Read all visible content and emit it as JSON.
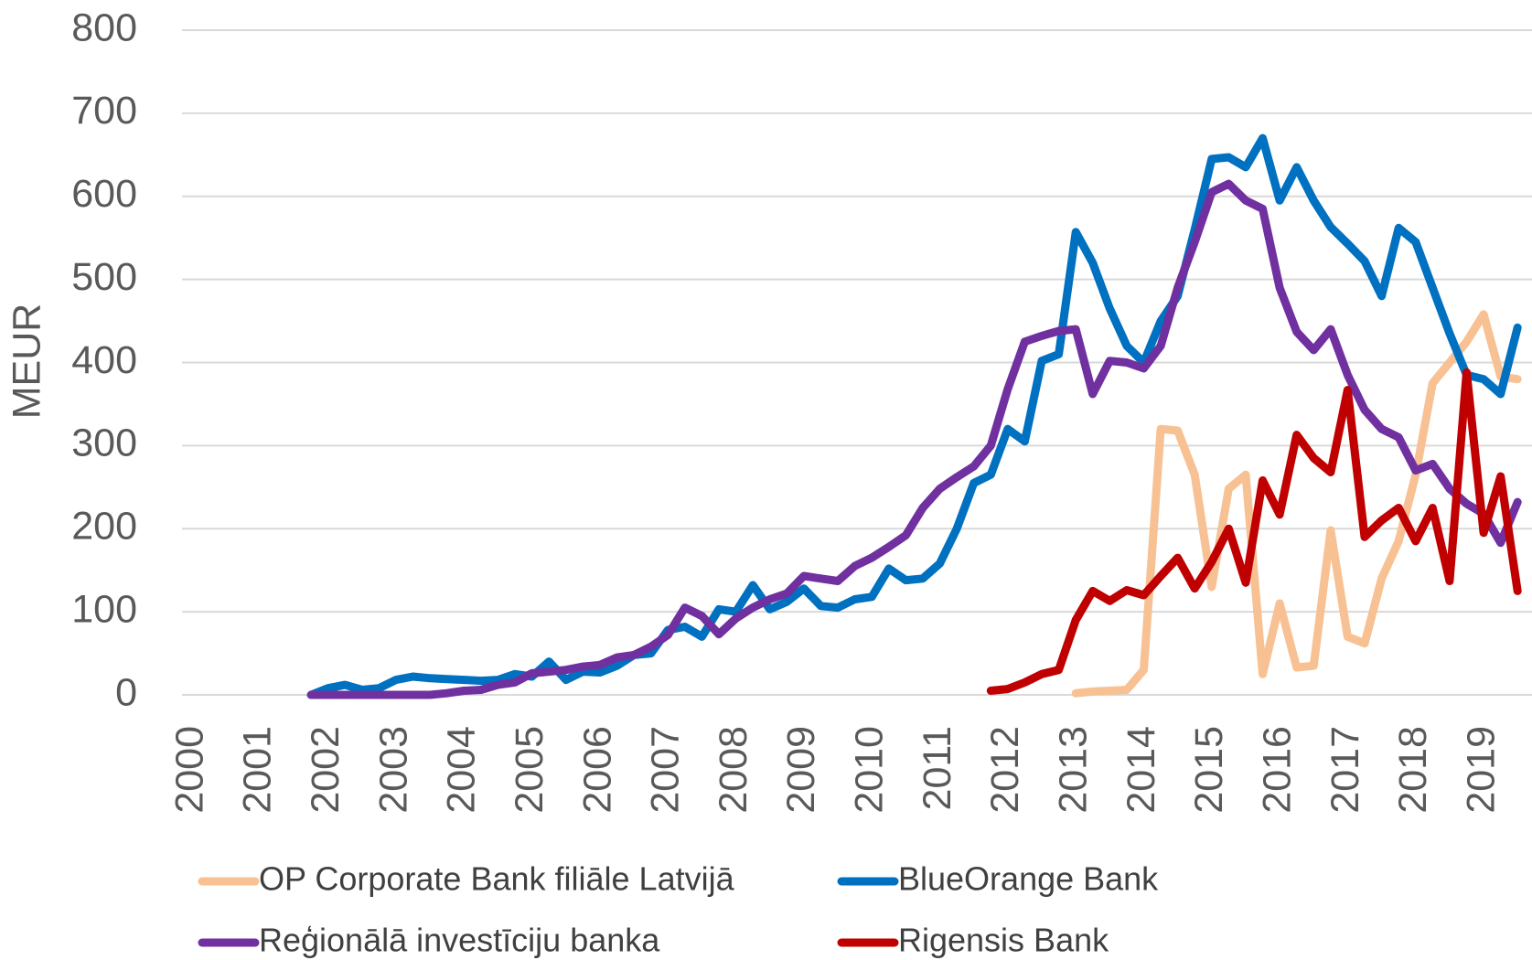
{
  "chart_data": {
    "type": "line",
    "y_label": "MEUR",
    "categories": [
      "2000",
      null,
      null,
      null,
      "2001",
      null,
      null,
      null,
      "2002",
      null,
      null,
      null,
      "2003",
      null,
      null,
      null,
      "2004",
      null,
      null,
      null,
      "2005",
      null,
      null,
      null,
      "2006",
      null,
      null,
      null,
      "2007",
      null,
      null,
      null,
      "2008",
      null,
      null,
      null,
      "2009",
      null,
      null,
      null,
      "2010",
      null,
      null,
      null,
      "2011",
      null,
      null,
      null,
      "2012",
      null,
      null,
      null,
      "2013",
      null,
      null,
      null,
      "2014",
      null,
      null,
      null,
      "2015",
      null,
      null,
      null,
      "2016",
      null,
      null,
      null,
      "2017",
      null,
      null,
      null,
      "2018",
      null,
      null,
      null,
      "2019",
      null,
      null
    ],
    "ylim": [
      0,
      800
    ],
    "yticks": [
      0,
      100,
      200,
      300,
      400,
      500,
      600,
      700,
      800
    ],
    "grid": true,
    "series": [
      {
        "name": "OP Corporate Bank filiāle Latvijā",
        "color": "#f8c193",
        "values": [
          null,
          null,
          null,
          null,
          null,
          null,
          null,
          null,
          null,
          null,
          null,
          null,
          null,
          null,
          null,
          null,
          null,
          null,
          null,
          null,
          null,
          null,
          null,
          null,
          null,
          null,
          null,
          null,
          null,
          null,
          null,
          null,
          null,
          null,
          null,
          null,
          null,
          null,
          null,
          null,
          null,
          null,
          null,
          null,
          null,
          null,
          null,
          null,
          null,
          null,
          null,
          null,
          2,
          4,
          5,
          6,
          30,
          320,
          318,
          265,
          130,
          248,
          265,
          25,
          110,
          33,
          35,
          198,
          70,
          62,
          140,
          185,
          265,
          375,
          400,
          425,
          458,
          383,
          380
        ]
      },
      {
        "name": "BlueOrange Bank",
        "color": "#0070c0",
        "values": [
          null,
          null,
          null,
          null,
          null,
          null,
          null,
          0,
          8,
          12,
          6,
          8,
          18,
          22,
          20,
          19,
          18,
          17,
          18,
          25,
          22,
          40,
          18,
          28,
          27,
          35,
          48,
          50,
          78,
          82,
          70,
          103,
          100,
          132,
          103,
          112,
          128,
          107,
          105,
          115,
          118,
          152,
          138,
          140,
          158,
          200,
          255,
          265,
          320,
          305,
          402,
          410,
          557,
          520,
          465,
          420,
          400,
          450,
          480,
          560,
          645,
          647,
          635,
          670,
          595,
          635,
          595,
          563,
          543,
          522,
          480,
          562,
          545,
          490,
          435,
          385,
          380,
          362,
          442
        ]
      },
      {
        "name": "Reģionālā investīciju banka",
        "color": "#7030a0",
        "values": [
          null,
          null,
          null,
          null,
          null,
          null,
          null,
          0,
          0,
          0,
          0,
          0,
          0,
          0,
          0,
          2,
          5,
          6,
          12,
          15,
          26,
          28,
          30,
          34,
          36,
          45,
          48,
          58,
          72,
          105,
          95,
          73,
          92,
          105,
          115,
          122,
          143,
          140,
          137,
          155,
          165,
          178,
          192,
          225,
          248,
          262,
          275,
          300,
          368,
          425,
          432,
          438,
          440,
          362,
          402,
          400,
          393,
          420,
          490,
          545,
          605,
          615,
          595,
          585,
          490,
          437,
          415,
          440,
          385,
          343,
          320,
          310,
          270,
          278,
          248,
          230,
          218,
          183,
          232
        ]
      },
      {
        "name": "Rigensis Bank",
        "color": "#c00000",
        "values": [
          null,
          null,
          null,
          null,
          null,
          null,
          null,
          null,
          null,
          null,
          null,
          null,
          null,
          null,
          null,
          null,
          null,
          null,
          null,
          null,
          null,
          null,
          null,
          null,
          null,
          null,
          null,
          null,
          null,
          null,
          null,
          null,
          null,
          null,
          null,
          null,
          null,
          null,
          null,
          null,
          null,
          null,
          null,
          null,
          null,
          null,
          null,
          5,
          7,
          15,
          25,
          30,
          90,
          125,
          113,
          126,
          120,
          143,
          165,
          128,
          160,
          200,
          135,
          258,
          217,
          313,
          285,
          268,
          367,
          190,
          210,
          225,
          185,
          225,
          137,
          388,
          195,
          263,
          125
        ]
      }
    ]
  }
}
